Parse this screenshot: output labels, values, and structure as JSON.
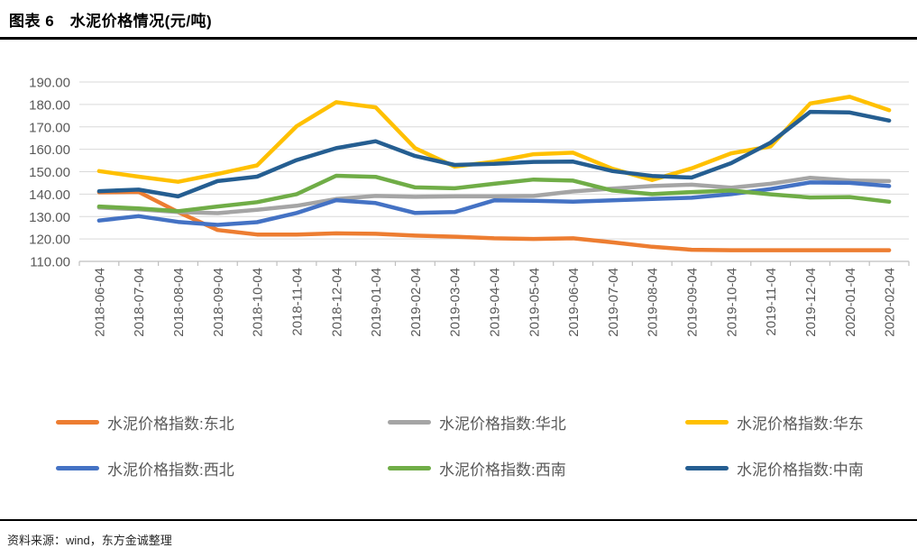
{
  "header": {
    "title": "图表 6　水泥价格情况(元/吨)"
  },
  "chart_data": {
    "type": "line",
    "title": "水泥价格情况(元/吨)",
    "x_labels": [
      "2018-06-04",
      "2018-07-04",
      "2018-08-04",
      "2018-09-04",
      "2018-10-04",
      "2018-11-04",
      "2018-12-04",
      "2019-01-04",
      "2019-02-04",
      "2019-03-04",
      "2019-04-04",
      "2019-05-04",
      "2019-06-04",
      "2019-07-04",
      "2019-08-04",
      "2019-09-04",
      "2019-10-04",
      "2019-11-04",
      "2019-12-04",
      "2020-01-04",
      "2020-02-04"
    ],
    "y_axis": {
      "min": 110,
      "max": 190,
      "step": 10,
      "tick_format": "2-decimals"
    },
    "grid": true,
    "legend_position": "bottom",
    "series": [
      {
        "name": "水泥价格指数:东北",
        "color": "#ED7D31",
        "values": [
          140.8,
          141.0,
          132.0,
          124.0,
          122.0,
          122.0,
          122.5,
          122.3,
          121.5,
          121.0,
          120.3,
          120.0,
          120.3,
          118.5,
          116.5,
          115.2,
          115.0,
          115.0,
          115.0,
          115.0,
          115.0
        ]
      },
      {
        "name": "水泥价格指数:华北",
        "color": "#A5A5A5",
        "values": [
          134.0,
          133.2,
          132.0,
          131.5,
          133.0,
          134.8,
          137.8,
          139.2,
          138.8,
          139.0,
          139.0,
          139.2,
          141.2,
          142.5,
          143.6,
          144.2,
          142.9,
          144.6,
          147.3,
          146.1,
          145.8
        ]
      },
      {
        "name": "水泥价格指数:华东",
        "color": "#FFC000",
        "values": [
          150.3,
          147.8,
          145.5,
          149.0,
          152.8,
          170.3,
          181.0,
          178.7,
          160.5,
          152.3,
          154.5,
          157.8,
          158.5,
          151.3,
          146.3,
          151.5,
          158.2,
          161.3,
          180.4,
          183.4,
          177.4
        ]
      },
      {
        "name": "水泥价格指数:西北",
        "color": "#4472C4",
        "values": [
          128.2,
          130.2,
          127.6,
          126.3,
          127.5,
          131.6,
          137.3,
          136.0,
          131.6,
          132.0,
          137.2,
          137.0,
          136.6,
          137.2,
          137.8,
          138.4,
          140.0,
          142.3,
          145.2,
          145.0,
          143.6
        ]
      },
      {
        "name": "水泥价格指数:西南",
        "color": "#70AD47",
        "values": [
          134.5,
          133.6,
          132.4,
          134.5,
          136.4,
          140.0,
          148.2,
          147.7,
          143.0,
          142.6,
          144.6,
          146.5,
          146.0,
          141.6,
          140.0,
          140.9,
          141.6,
          139.9,
          138.5,
          138.7,
          136.6
        ]
      },
      {
        "name": "水泥价格指数:中南",
        "color": "#255E91",
        "values": [
          141.3,
          142.0,
          139.0,
          145.8,
          147.8,
          155.2,
          160.5,
          163.6,
          157.0,
          153.0,
          153.5,
          154.4,
          154.5,
          150.3,
          148.1,
          147.4,
          153.8,
          163.0,
          176.7,
          176.4,
          172.8
        ]
      }
    ],
    "colors": {
      "gridline": "#D9D9D9",
      "axis": "#BFBFBF",
      "tick_label": "#595959"
    }
  },
  "footer": {
    "source": "资料来源：wind，东方金诚整理"
  }
}
